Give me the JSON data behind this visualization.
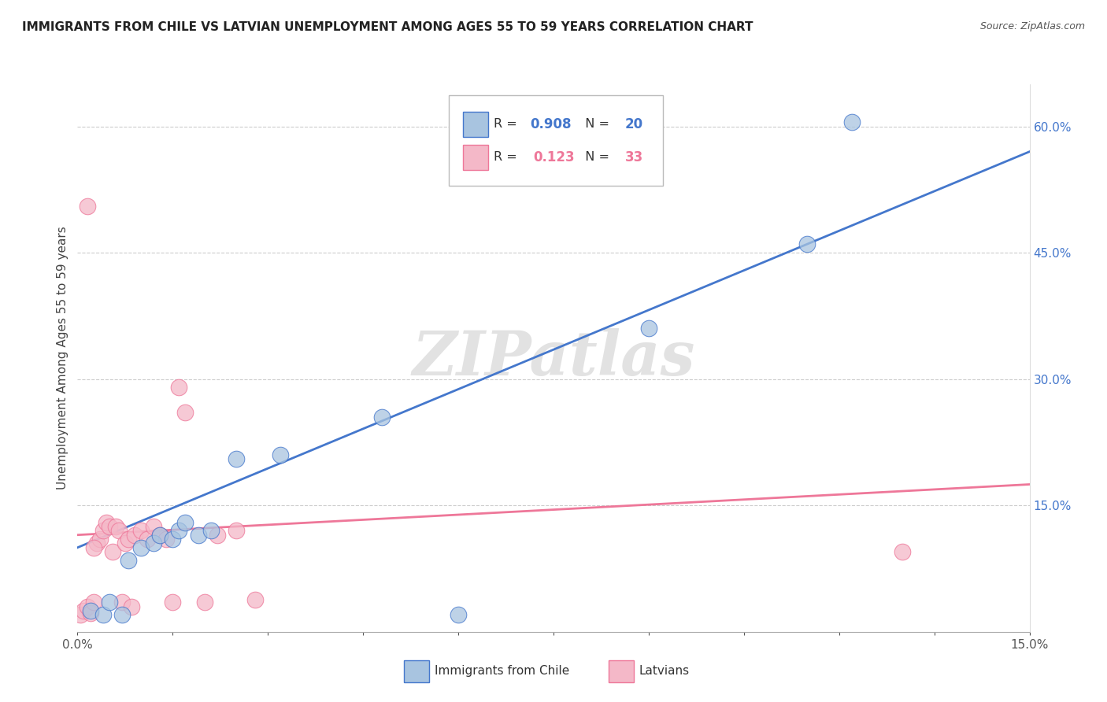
{
  "title": "IMMIGRANTS FROM CHILE VS LATVIAN UNEMPLOYMENT AMONG AGES 55 TO 59 YEARS CORRELATION CHART",
  "source": "Source: ZipAtlas.com",
  "ylabel": "Unemployment Among Ages 55 to 59 years",
  "right_yticks": [
    "15.0%",
    "30.0%",
    "45.0%",
    "60.0%"
  ],
  "right_ytick_vals": [
    15.0,
    30.0,
    45.0,
    60.0
  ],
  "legend_blue_r": "0.908",
  "legend_blue_n": "20",
  "legend_pink_r": "0.123",
  "legend_pink_n": "33",
  "watermark": "ZIPatlas",
  "blue_color": "#a8c4e0",
  "pink_color": "#f4b8c8",
  "blue_line_color": "#4477cc",
  "pink_line_color": "#ee7799",
  "blue_scatter": [
    [
      0.2,
      2.5
    ],
    [
      0.4,
      2.0
    ],
    [
      0.5,
      3.5
    ],
    [
      0.7,
      2.0
    ],
    [
      0.8,
      8.5
    ],
    [
      1.0,
      10.0
    ],
    [
      1.2,
      10.5
    ],
    [
      1.3,
      11.5
    ],
    [
      1.5,
      11.0
    ],
    [
      1.6,
      12.0
    ],
    [
      1.7,
      13.0
    ],
    [
      1.9,
      11.5
    ],
    [
      2.1,
      12.0
    ],
    [
      2.5,
      20.5
    ],
    [
      3.2,
      21.0
    ],
    [
      4.8,
      25.5
    ],
    [
      6.0,
      2.0
    ],
    [
      9.0,
      36.0
    ],
    [
      11.5,
      46.0
    ],
    [
      12.2,
      60.5
    ]
  ],
  "pink_scatter": [
    [
      0.05,
      2.0
    ],
    [
      0.1,
      2.5
    ],
    [
      0.15,
      3.0
    ],
    [
      0.2,
      2.2
    ],
    [
      0.25,
      3.5
    ],
    [
      0.3,
      10.5
    ],
    [
      0.35,
      11.0
    ],
    [
      0.4,
      12.0
    ],
    [
      0.45,
      13.0
    ],
    [
      0.5,
      12.5
    ],
    [
      0.55,
      9.5
    ],
    [
      0.6,
      12.5
    ],
    [
      0.65,
      12.0
    ],
    [
      0.7,
      3.5
    ],
    [
      0.75,
      10.5
    ],
    [
      0.8,
      11.0
    ],
    [
      0.85,
      3.0
    ],
    [
      0.9,
      11.5
    ],
    [
      1.0,
      12.0
    ],
    [
      1.1,
      11.0
    ],
    [
      1.2,
      12.5
    ],
    [
      1.3,
      11.5
    ],
    [
      1.5,
      3.5
    ],
    [
      1.6,
      29.0
    ],
    [
      1.7,
      26.0
    ],
    [
      2.0,
      3.5
    ],
    [
      2.2,
      11.5
    ],
    [
      2.5,
      12.0
    ],
    [
      2.8,
      3.8
    ],
    [
      0.15,
      50.5
    ],
    [
      1.4,
      11.0
    ],
    [
      13.0,
      9.5
    ],
    [
      0.25,
      10.0
    ]
  ],
  "xlim": [
    0,
    15
  ],
  "ylim": [
    0,
    65
  ],
  "blue_line": [
    [
      0,
      10.0
    ],
    [
      15.0,
      57.0
    ]
  ],
  "pink_line": [
    [
      0,
      11.5
    ],
    [
      15.0,
      17.5
    ]
  ]
}
